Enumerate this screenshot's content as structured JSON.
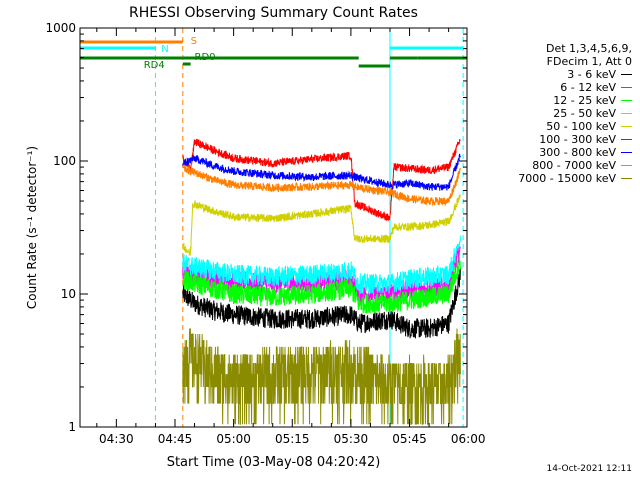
{
  "chart_data": {
    "type": "line",
    "title": "RHESSI Observing Summary Count Rates",
    "xlabel": "Start Time (03-May-08 04:20:42)",
    "ylabel": "Count Rate (s⁻¹ detector⁻¹)",
    "y_scale": "log",
    "ylim": [
      1,
      1000
    ],
    "xlim": [
      "04:20:42",
      "05:59:42"
    ],
    "x_ticks": [
      "04:30",
      "04:45",
      "05:00",
      "05:15",
      "05:30",
      "05:45",
      "06:00"
    ],
    "y_ticks": [
      "1",
      "10",
      "100",
      "1000"
    ],
    "legend_header": [
      "Det 1,3,4,5,6,9,",
      "FDecim 1, Att 0"
    ],
    "data_start": "04:47:00",
    "data_end": "05:58:40",
    "series": [
      {
        "name": "3 - 6 keV",
        "color": "#000000",
        "x": [
          "04:47",
          "04:50",
          "04:55",
          "05:00",
          "05:10",
          "05:20",
          "05:30",
          "05:32",
          "05:40",
          "05:45",
          "05:50",
          "05:55",
          "05:58"
        ],
        "y": [
          10,
          8.5,
          7.5,
          7,
          6.5,
          6.5,
          7,
          6,
          6.5,
          5.5,
          5.5,
          6,
          14
        ]
      },
      {
        "name": "6 - 12 keV",
        "color": "#ff00ff",
        "x": [
          "04:47",
          "04:50",
          "04:55",
          "05:00",
          "05:10",
          "05:20",
          "05:30",
          "05:32",
          "05:40",
          "05:45",
          "05:50",
          "05:55",
          "05:58"
        ],
        "y": [
          15,
          14,
          13,
          12.5,
          12,
          12,
          13,
          10,
          10,
          11,
          11,
          11.5,
          22
        ]
      },
      {
        "name": "12 - 25 keV",
        "color": "#00ff00",
        "x": [
          "04:47",
          "04:50",
          "04:55",
          "05:00",
          "05:10",
          "05:20",
          "05:30",
          "05:32",
          "05:40",
          "05:45",
          "05:50",
          "05:55",
          "05:58"
        ],
        "y": [
          13,
          12,
          11,
          10,
          9.5,
          10,
          11,
          8.5,
          8.5,
          9,
          9.5,
          10,
          18
        ]
      },
      {
        "name": "25 - 50 keV",
        "color": "#00ffff",
        "x": [
          "04:47",
          "04:50",
          "04:55",
          "05:00",
          "05:10",
          "05:20",
          "05:30",
          "05:32",
          "05:40",
          "05:45",
          "05:50",
          "05:55",
          "05:58"
        ],
        "y": [
          17,
          16,
          15,
          14,
          13.5,
          14,
          15,
          12,
          12,
          13,
          13.5,
          14,
          26
        ]
      },
      {
        "name": "50 - 100 keV",
        "color": "#d0d000",
        "x": [
          "04:47",
          "04:49",
          "04:49.5",
          "04:55",
          "05:00",
          "05:10",
          "05:20",
          "05:30",
          "05:31",
          "05:40",
          "05:41",
          "05:45",
          "05:50",
          "05:55",
          "05:58"
        ],
        "y": [
          23,
          20,
          48,
          42,
          38,
          37,
          40,
          44,
          26,
          26,
          32,
          32,
          33,
          35,
          55
        ]
      },
      {
        "name": "100 - 300 keV",
        "color": "#ff0000",
        "x": [
          "04:47",
          "04:49",
          "04:50",
          "04:55",
          "05:00",
          "05:10",
          "05:20",
          "05:30",
          "05:31",
          "05:40",
          "05:41",
          "05:45",
          "05:50",
          "05:55",
          "05:58"
        ],
        "y": [
          105,
          85,
          140,
          120,
          105,
          96,
          103,
          110,
          48,
          37,
          90,
          88,
          85,
          90,
          145
        ]
      },
      {
        "name": "300 - 800 keV",
        "color": "#0000ff",
        "x": [
          "04:47",
          "04:50",
          "04:55",
          "05:00",
          "05:10",
          "05:20",
          "05:30",
          "05:32",
          "05:40",
          "05:45",
          "05:50",
          "05:55",
          "05:58"
        ],
        "y": [
          95,
          105,
          92,
          84,
          78,
          76,
          78,
          74,
          66,
          68,
          64,
          64,
          110
        ]
      },
      {
        "name": "800 - 7000 keV",
        "color": "#ff8000",
        "x": [
          "04:47",
          "04:50",
          "04:55",
          "05:00",
          "05:10",
          "05:20",
          "05:30",
          "05:32",
          "05:40",
          "05:45",
          "05:50",
          "05:55",
          "05:58"
        ],
        "y": [
          88,
          82,
          72,
          66,
          63,
          64,
          66,
          63,
          58,
          52,
          50,
          50,
          85
        ]
      },
      {
        "name": "7000 - 15000 keV",
        "color": "#8b8b00",
        "x": [
          "04:47",
          "04:50",
          "04:55",
          "05:00",
          "05:10",
          "05:20",
          "05:30",
          "05:40",
          "05:50",
          "05:55",
          "05:58"
        ],
        "y": [
          3.5,
          3.2,
          2.5,
          2.2,
          2.4,
          2.6,
          2.7,
          2.0,
          2.0,
          2.0,
          4.0
        ]
      }
    ],
    "markers": {
      "vlines_cyan": [
        "04:20:42",
        "04:40:00",
        "05:40:00",
        "05:58:42"
      ],
      "vlines_orange": [
        "04:47:00"
      ],
      "S": {
        "label": "S",
        "color": "#ff8000",
        "spans": [
          [
            "04:20:42",
            "04:47:00"
          ]
        ]
      },
      "N": {
        "label": "N",
        "color": "#00ffff",
        "spans": [
          [
            "04:20:42",
            "04:40:00"
          ],
          [
            "05:40:00",
            "05:58:42"
          ]
        ]
      },
      "RD0": {
        "label": "RD0",
        "color": "#008000",
        "spans": [
          [
            "04:47:00",
            "05:32:00"
          ],
          [
            "05:32:00",
            "05:40:00"
          ],
          [
            "05:40:00",
            "05:47:00"
          ],
          [
            "05:47:00",
            "05:59:42"
          ]
        ]
      },
      "RD4": {
        "label": "RD4",
        "color": "#008000",
        "spans": [
          [
            "04:20:42",
            "04:47:00"
          ],
          [
            "04:47:00",
            "04:49:00"
          ]
        ]
      }
    }
  },
  "timestamp": "14-Oct-2021 12:11"
}
